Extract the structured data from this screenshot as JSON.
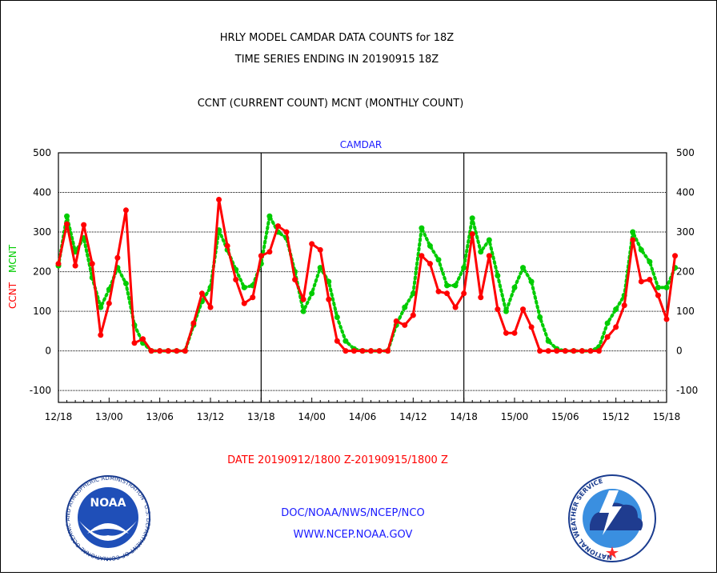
{
  "chart_data": {
    "type": "line",
    "title": [
      "HRLY MODEL CAMDAR DATA COUNTS for 18Z",
      "TIME SERIES ENDING IN 20190915 18Z"
    ],
    "subtitle": "CCNT (CURRENT COUNT) MCNT (MONTHLY COUNT)",
    "panel_label": "CAMDAR",
    "ylabel_left": [
      "CCNT",
      "MCNT"
    ],
    "xlabel": "DATE 20190912/1800 Z-20190915/1800 Z",
    "ylim": [
      -130,
      500
    ],
    "y_ticks": [
      -100,
      0,
      100,
      200,
      300,
      400,
      500
    ],
    "x_tick_labels": [
      "12/18",
      "13/00",
      "13/06",
      "13/12",
      "13/18",
      "14/00",
      "14/06",
      "14/12",
      "14/18",
      "15/00",
      "15/06",
      "15/12",
      "15/18"
    ],
    "grid": true,
    "x_start": 0,
    "x_end": 72,
    "series": [
      {
        "name": "CCNT",
        "color": "#ff0000",
        "style": "solid",
        "values": [
          220,
          320,
          215,
          318,
          220,
          40,
          120,
          235,
          355,
          20,
          30,
          0,
          0,
          0,
          0,
          0,
          70,
          145,
          110,
          382,
          265,
          180,
          120,
          135,
          240,
          250,
          315,
          300,
          180,
          130,
          270,
          255,
          130,
          25,
          0,
          0,
          0,
          0,
          0,
          0,
          75,
          65,
          90,
          240,
          220,
          150,
          145,
          110,
          145,
          295,
          135,
          240,
          105,
          45,
          45,
          105,
          60,
          0,
          0,
          0,
          0,
          0,
          0,
          0,
          0,
          35,
          60,
          115,
          280,
          175,
          180,
          140,
          80,
          240
        ]
      },
      {
        "name": "MCNT",
        "color": "#00cc00",
        "style": "dotted",
        "values": [
          215,
          340,
          250,
          285,
          185,
          110,
          155,
          210,
          170,
          65,
          20,
          0,
          0,
          0,
          0,
          0,
          65,
          125,
          160,
          305,
          255,
          205,
          160,
          165,
          220,
          340,
          300,
          285,
          200,
          100,
          145,
          210,
          175,
          85,
          25,
          5,
          0,
          0,
          0,
          0,
          65,
          110,
          145,
          310,
          265,
          230,
          165,
          165,
          210,
          335,
          250,
          280,
          190,
          100,
          160,
          210,
          175,
          85,
          25,
          5,
          0,
          0,
          0,
          0,
          10,
          70,
          105,
          140,
          300,
          255,
          225,
          160,
          160,
          210
        ]
      }
    ]
  },
  "footer": {
    "line1": "DOC/NOAA/NWS/NCEP/NCO",
    "line2": "WWW.NCEP.NOAA.GOV"
  },
  "logos": {
    "left": {
      "text": "NOAA",
      "ring": "NATIONAL OCEANIC AND ATMOSPHERIC ADMINISTRATION · U.S. DEPARTMENT OF COMMERCE"
    },
    "right": {
      "ring": "NATIONAL WEATHER SERVICE"
    }
  }
}
